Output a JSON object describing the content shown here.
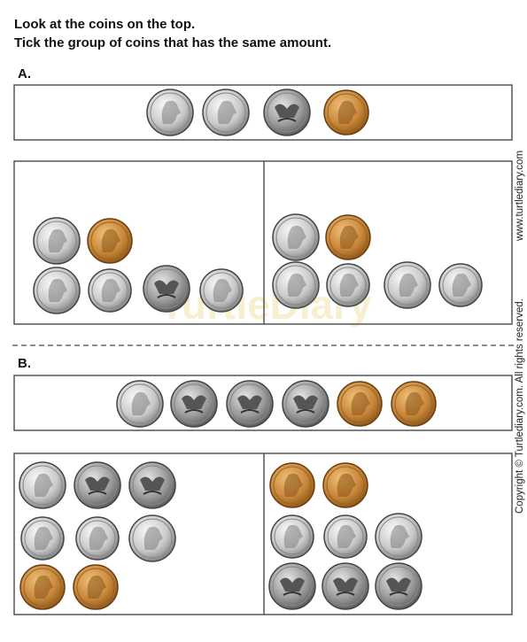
{
  "instructions": [
    "Look at the coins on the top.",
    "Tick the group of coins that has the same amount."
  ],
  "questions": [
    {
      "label": "A."
    },
    {
      "label": "B."
    }
  ],
  "watermark": "TurtleDiary",
  "copyright": "Copyright © Turtlediary.com. All rights reserved.",
  "website": "www.turtlediary.com"
}
